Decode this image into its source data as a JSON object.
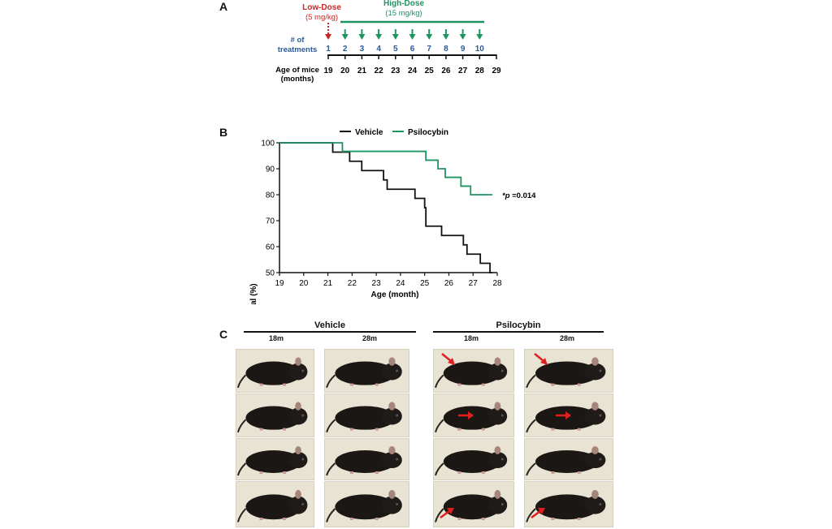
{
  "panelA": {
    "letter": "A",
    "low_dose_title": "Low-Dose",
    "low_dose_amount": "(5 mg/kg)",
    "high_dose_title": "High-Dose",
    "high_dose_amount": "(15 mg/kg)",
    "treatments_label_1": "# of",
    "treatments_label_2": "treatments",
    "treatment_numbers": [
      "1",
      "2",
      "3",
      "4",
      "5",
      "6",
      "7",
      "8",
      "9",
      "10"
    ],
    "age_label_1": "Age of mice",
    "age_label_2": "(months)",
    "ages": [
      "19",
      "20",
      "21",
      "22",
      "23",
      "24",
      "25",
      "26",
      "27",
      "28",
      "29"
    ],
    "colors": {
      "low": "#cc2222",
      "high": "#1e9460",
      "numbers": "#2a5a9a"
    }
  },
  "panelB": {
    "letter": "B",
    "p_value_prefix": "*p",
    "p_value_suffix": " =0.014"
  },
  "chart_data": {
    "type": "line",
    "title": "",
    "xlabel": "Age (month)",
    "ylabel": "Survival (%)",
    "xlim": [
      19,
      28
    ],
    "ylim": [
      50,
      100
    ],
    "xticks": [
      19,
      20,
      21,
      22,
      23,
      24,
      25,
      26,
      27,
      28
    ],
    "yticks": [
      50,
      60,
      70,
      80,
      90,
      100
    ],
    "legend": "top-center",
    "series": [
      {
        "name": "Vehicle",
        "color": "#111111",
        "step": true,
        "x": [
          19,
          21.2,
          21.9,
          22.4,
          23.3,
          23.45,
          24.6,
          25.0,
          25.05,
          25.7,
          26.6,
          26.75,
          27.3,
          27.7,
          27.8
        ],
        "y": [
          100,
          96.4,
          92.9,
          89.3,
          85.7,
          82.1,
          78.6,
          75.0,
          67.9,
          64.3,
          60.7,
          57.1,
          53.6,
          50.0,
          50.0
        ]
      },
      {
        "name": "Psilocybin",
        "color": "#1e9460",
        "step": true,
        "x": [
          19,
          21.6,
          25.05,
          25.55,
          25.85,
          26.5,
          26.9,
          27.8
        ],
        "y": [
          100,
          96.7,
          93.3,
          90.0,
          86.7,
          83.3,
          80.0,
          80.0
        ]
      }
    ],
    "annotation": "*p =0.014"
  },
  "panelC": {
    "letter": "C",
    "groups": [
      {
        "title": "Vehicle",
        "cols": [
          "18m",
          "28m"
        ]
      },
      {
        "title": "Psilocybin",
        "cols": [
          "18m",
          "28m"
        ]
      }
    ]
  }
}
